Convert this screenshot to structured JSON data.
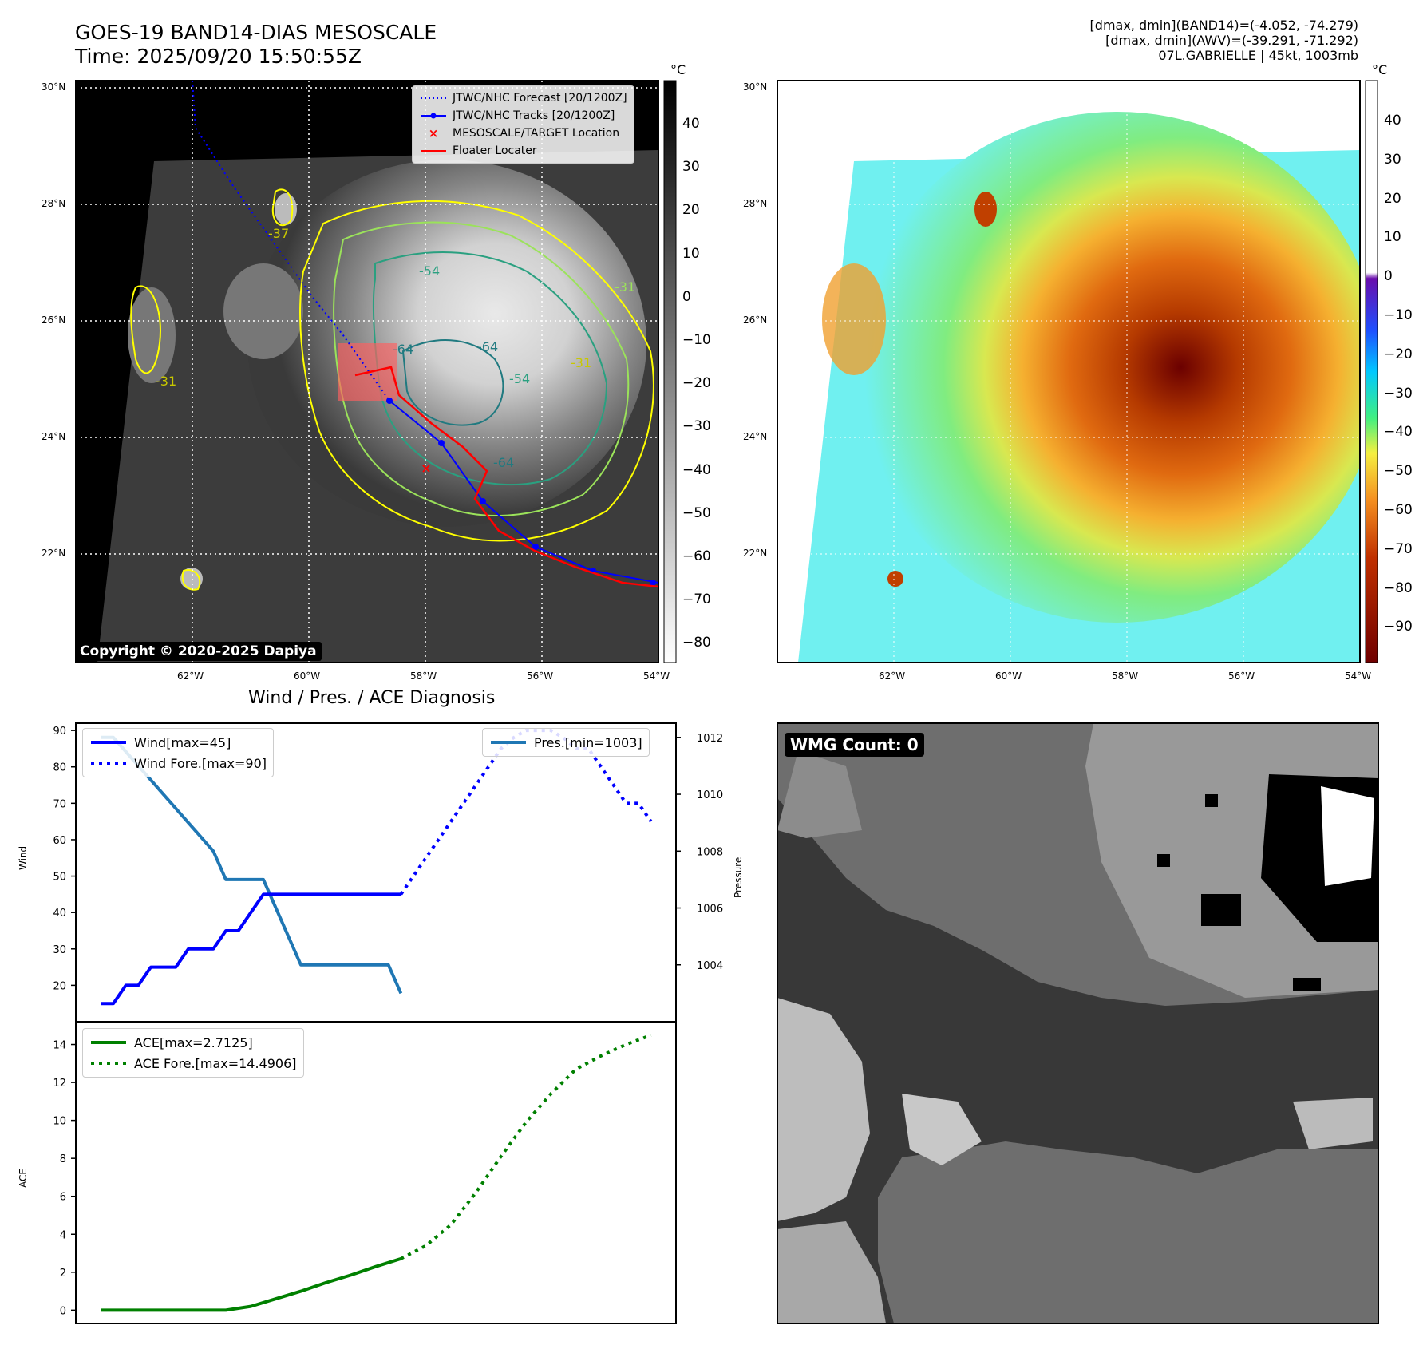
{
  "header": {
    "title_line1": "GOES-19 BAND14-DIAS MESOSCALE",
    "title_line2": "Time: 2025/09/20 15:50:55Z",
    "stats_line1": "[dmax, dmin](BAND14)=(-4.052, -74.279)",
    "stats_line2": "[dmax, dmin](AWV)=(-39.291, -71.292)",
    "stats_line3": "07L.GABRIELLE | 45kt, 1003mb"
  },
  "map": {
    "lat_labels": [
      "30°N",
      "28°N",
      "26°N",
      "24°N",
      "22°N"
    ],
    "lon_labels": [
      "62°W",
      "60°W",
      "58°W",
      "56°W",
      "54°W"
    ],
    "copyright": "Copyright © 2020-2025 Dapiya",
    "legend": [
      {
        "label": "JTWC/NHC Forecast [20/1200Z]",
        "color": "#0000ff",
        "style": "dotted"
      },
      {
        "label": "JTWC/NHC Tracks [20/1200Z]",
        "color": "#0000ff",
        "style": "solid-dot"
      },
      {
        "label": "MESOSCALE/TARGET Location",
        "color": "#ff0000",
        "style": "x"
      },
      {
        "label": "Floater Locater",
        "color": "#ff0000",
        "style": "solid"
      }
    ],
    "contour_labels": [
      "-54",
      "-64",
      "-64",
      "-54",
      "-31",
      "-31",
      "-37",
      "-64",
      "-31"
    ],
    "colorbar_unit": "°C",
    "colorbar_ticks": [
      "40",
      "30",
      "20",
      "10",
      "0",
      "−10",
      "−20",
      "−30",
      "−40",
      "−50",
      "−60",
      "−70",
      "−80"
    ],
    "colorbar2_unit": "°C",
    "colorbar2_ticks": [
      "40",
      "30",
      "20",
      "10",
      "0",
      "−10",
      "−20",
      "−30",
      "−40",
      "−50",
      "−60",
      "−70",
      "−80",
      "−90"
    ]
  },
  "wmg": {
    "label": "WMG Count: 0"
  },
  "colors": {
    "wind": "#0000ff",
    "pressure": "#1f77b4",
    "ace": "#008000",
    "track_red": "#ff0000"
  },
  "chart_data": [
    {
      "type": "line",
      "title": "Wind / Pres. / ACE Diagnosis",
      "ylabel": "Wind",
      "ylabel_right": "Pressure",
      "ylim": [
        10,
        92
      ],
      "ylim_right": [
        1002.0,
        1012.5
      ],
      "yticks": [
        20,
        30,
        40,
        50,
        60,
        70,
        80,
        90
      ],
      "yticks_right": [
        1004,
        1006,
        1008,
        1010,
        1012
      ],
      "x": [
        0,
        1,
        2,
        3,
        4,
        5,
        6,
        7,
        8,
        9,
        10,
        11,
        12,
        13,
        14,
        15,
        16,
        17,
        18,
        19,
        20,
        21,
        22,
        23,
        24,
        25,
        26,
        27,
        28,
        29,
        30,
        31,
        32,
        33,
        34,
        35,
        36,
        37,
        38,
        39,
        40,
        41,
        42,
        43,
        44,
        45,
        46,
        47,
        48
      ],
      "series": [
        {
          "name": "Wind[max=45]",
          "axis": "left",
          "style": "solid",
          "x": [
            0,
            1,
            2,
            3,
            4,
            5,
            6,
            7,
            8,
            9,
            10,
            11,
            12,
            13,
            14,
            15,
            16,
            17,
            18,
            19,
            20,
            21,
            22,
            23,
            24
          ],
          "values": [
            15,
            15,
            20,
            20,
            25,
            25,
            25,
            30,
            30,
            30,
            35,
            35,
            40,
            45,
            45,
            45,
            45,
            45,
            45,
            45,
            45,
            45,
            45,
            45,
            45
          ]
        },
        {
          "name": "Wind Fore.[max=90]",
          "axis": "left",
          "style": "dotted",
          "x": [
            24,
            25,
            26,
            27,
            28,
            29,
            30,
            31,
            32,
            33,
            34,
            35,
            36,
            37,
            38,
            39,
            40,
            41,
            42,
            43,
            44
          ],
          "values": [
            45,
            50,
            55,
            60,
            65,
            70,
            75,
            80,
            85,
            88,
            90,
            90,
            90,
            88,
            85,
            85,
            80,
            75,
            70,
            70,
            65
          ]
        },
        {
          "name": "Pres.[min=1003]",
          "axis": "right",
          "style": "solid",
          "x": [
            0,
            1,
            2,
            3,
            4,
            5,
            6,
            7,
            8,
            9,
            10,
            11,
            12,
            13,
            14,
            15,
            16,
            17,
            18,
            19,
            20,
            21,
            22,
            23,
            24
          ],
          "values": [
            1012,
            1012,
            1011.5,
            1011,
            1010.5,
            1010,
            1009.5,
            1009,
            1008.5,
            1008,
            1007,
            1007,
            1007,
            1007,
            1006,
            1005,
            1004,
            1004,
            1004,
            1004,
            1004,
            1004,
            1004,
            1004,
            1003
          ]
        }
      ]
    },
    {
      "type": "line",
      "ylabel": "ACE",
      "ylim": [
        -0.7,
        15.2
      ],
      "yticks": [
        0,
        2,
        4,
        6,
        8,
        10,
        12,
        14
      ],
      "series": [
        {
          "name": "ACE[max=2.7125]",
          "style": "solid",
          "x": [
            0,
            10,
            12,
            14,
            16,
            18,
            20,
            22,
            24
          ],
          "values": [
            0,
            0,
            0.2,
            0.6,
            1.0,
            1.45,
            1.85,
            2.3,
            2.7125
          ]
        },
        {
          "name": "ACE Fore.[max=14.4906]",
          "style": "dotted",
          "x": [
            24,
            26,
            28,
            30,
            32,
            34,
            36,
            38,
            40,
            42,
            44
          ],
          "values": [
            2.7125,
            3.4,
            4.5,
            6.2,
            8.1,
            9.9,
            11.4,
            12.7,
            13.4,
            14.0,
            14.4906
          ]
        }
      ]
    }
  ]
}
